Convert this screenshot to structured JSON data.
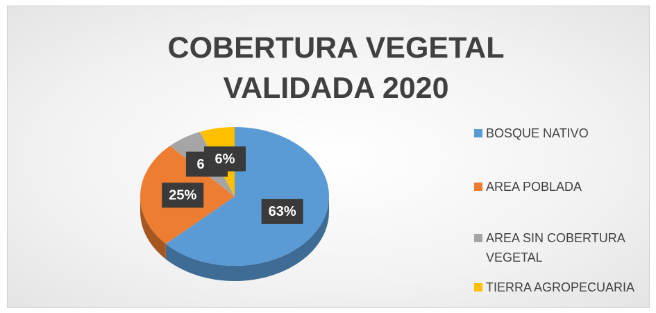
{
  "chart_data": {
    "type": "pie",
    "title": "COBERTURA VEGETAL VALIDADA 2020",
    "categories": [
      "BOSQUE NATIVO",
      "AREA POBLADA",
      "AREA SIN COBERTURA VEGETAL",
      "TIERRA AGROPECUARIA"
    ],
    "values": [
      63,
      25,
      6,
      6
    ],
    "value_labels": [
      "63%",
      "25%",
      "6%",
      "6%"
    ],
    "colors": [
      "#5b9bd5",
      "#ed7d31",
      "#a5a5a5",
      "#ffc000"
    ],
    "legend": "right"
  }
}
